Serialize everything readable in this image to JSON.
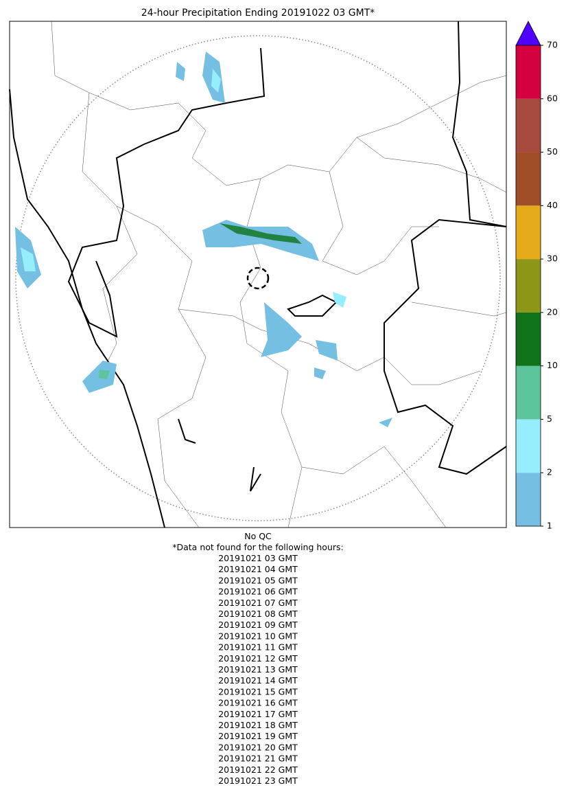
{
  "title": "24-hour Precipitation Ending 20191022 03 GMT*",
  "colorbar": {
    "levels": [
      1,
      2,
      5,
      10,
      20,
      30,
      40,
      50,
      60,
      70
    ],
    "colors": [
      "#75bfe3",
      "#96edfc",
      "#5dc59b",
      "#0e7319",
      "#8c9617",
      "#e6ab1a",
      "#9f4e28",
      "#a64a40",
      "#d5003f"
    ],
    "extend_color": "#5000ff"
  },
  "notes": {
    "qc": "No QC",
    "missing_header": "*Data not found for the following hours:",
    "missing_hours": [
      "20191021 03 GMT",
      "20191021 04 GMT",
      "20191021 05 GMT",
      "20191021 06 GMT",
      "20191021 07 GMT",
      "20191021 08 GMT",
      "20191021 09 GMT",
      "20191021 10 GMT",
      "20191021 11 GMT",
      "20191021 12 GMT",
      "20191021 13 GMT",
      "20191021 14 GMT",
      "20191021 15 GMT",
      "20191021 16 GMT",
      "20191021 17 GMT",
      "20191021 18 GMT",
      "20191021 19 GMT",
      "20191021 20 GMT",
      "20191021 21 GMT",
      "20191021 22 GMT",
      "20191021 23 GMT"
    ]
  }
}
